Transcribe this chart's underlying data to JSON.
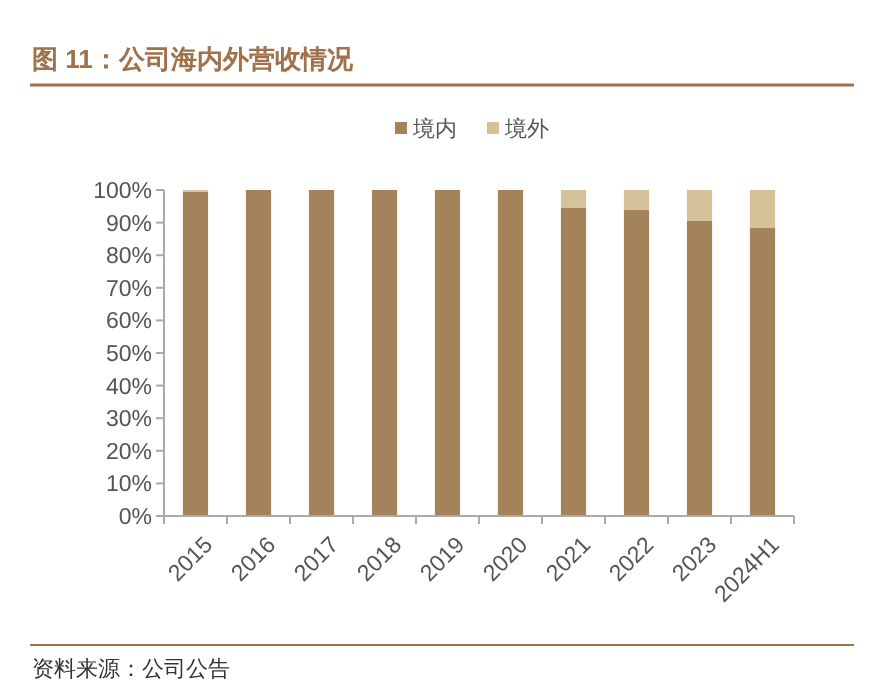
{
  "chart_data": {
    "type": "bar",
    "title": "图 11：公司海内外营收情况",
    "stacked": true,
    "legend": "top",
    "categories": [
      "2015",
      "2016",
      "2017",
      "2018",
      "2019",
      "2020",
      "2021",
      "2022",
      "2023",
      "2024H1"
    ],
    "series": [
      {
        "name": "境内",
        "color": "#a5835a",
        "values": [
          99.5,
          100,
          100,
          100,
          100,
          100,
          94.5,
          94,
          90.5,
          88.5
        ]
      },
      {
        "name": "境外",
        "color": "#d6c299",
        "values": [
          0.5,
          0,
          0,
          0,
          0,
          0,
          5.5,
          6,
          9.5,
          11.5
        ]
      }
    ],
    "ylim": [
      0,
      100
    ],
    "yticks": [
      {
        "value": 0,
        "label": "0%"
      },
      {
        "value": 10,
        "label": "10%"
      },
      {
        "value": 20,
        "label": "20%"
      },
      {
        "value": 30,
        "label": "30%"
      },
      {
        "value": 40,
        "label": "40%"
      },
      {
        "value": 50,
        "label": "50%"
      },
      {
        "value": 60,
        "label": "60%"
      },
      {
        "value": 70,
        "label": "70%"
      },
      {
        "value": 80,
        "label": "80%"
      },
      {
        "value": 90,
        "label": "90%"
      },
      {
        "value": 100,
        "label": "100%"
      }
    ],
    "grid": false,
    "annotations": [
      "资料来源：公司公告"
    ]
  }
}
